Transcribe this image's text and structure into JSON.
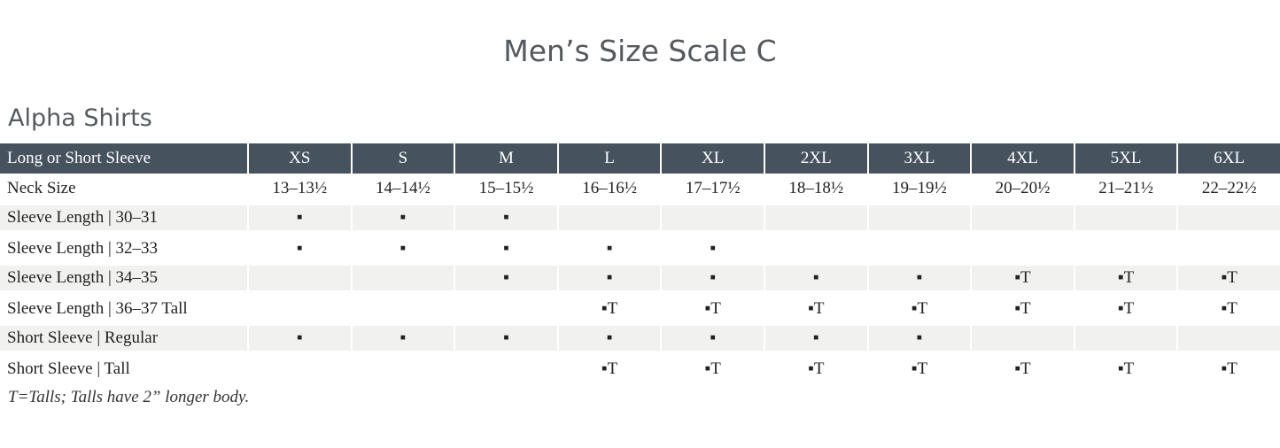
{
  "header": {
    "title": "Men’s Size Scale C",
    "subtitle": "Alpha Shirts"
  },
  "table": {
    "columns": [
      "Long or Short Sleeve",
      "XS",
      "S",
      "M",
      "L",
      "XL",
      "2XL",
      "3XL",
      "4XL",
      "5XL",
      "6XL"
    ],
    "rows": [
      [
        "Neck Size",
        "13–13½",
        "14–14½",
        "15–15½",
        "16–16½",
        "17–17½",
        "18–18½",
        "19–19½",
        "20–20½",
        "21–21½",
        "22–22½"
      ],
      [
        "Sleeve Length | 30–31",
        "▪",
        "▪",
        "▪",
        null,
        null,
        null,
        null,
        null,
        null,
        null
      ],
      [
        "Sleeve Length | 32–33",
        "▪",
        "▪",
        "▪",
        "▪",
        "▪",
        null,
        null,
        null,
        null,
        null
      ],
      [
        "Sleeve Length | 34–35",
        null,
        null,
        "▪",
        "▪",
        "▪",
        "▪",
        "▪",
        "▪T",
        "▪T",
        "▪T"
      ],
      [
        "Sleeve Length | 36–37 Tall",
        null,
        null,
        null,
        "▪T",
        "▪T",
        "▪T",
        "▪T",
        "▪T",
        "▪T",
        "▪T"
      ],
      [
        "Short Sleeve | Regular",
        "▪",
        "▪",
        "▪",
        "▪",
        "▪",
        "▪",
        "▪",
        null,
        null,
        null
      ],
      [
        "Short Sleeve | Tall",
        null,
        null,
        null,
        "▪T",
        "▪T",
        "▪T",
        "▪T",
        "▪T",
        "▪T",
        "▪T"
      ]
    ]
  },
  "footnote": "T=Talls; Talls have 2” longer body."
}
